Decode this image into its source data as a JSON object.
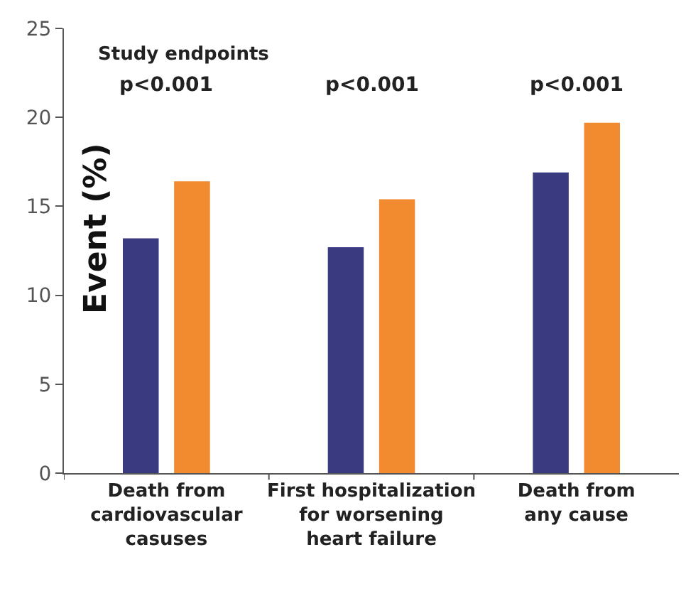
{
  "chart_data": {
    "type": "bar",
    "ylabel": "Event (%)",
    "categories": [
      "Death from\ncardiovascular\ncasuses",
      "First hospitalization\nfor worsening\nheart failure",
      "Death from\nany cause"
    ],
    "series": [
      {
        "color": "#3a3a80",
        "values": [
          13.2,
          12.7,
          16.9
        ]
      },
      {
        "color": "#f28a30",
        "values": [
          16.4,
          15.4,
          19.7
        ]
      }
    ],
    "ylim": [
      0,
      25
    ],
    "yticks": [
      0,
      5,
      10,
      15,
      20,
      25
    ],
    "annotations": [
      "Study endpoints",
      "p<0.001",
      "p<0.001",
      "p<0.001"
    ]
  }
}
